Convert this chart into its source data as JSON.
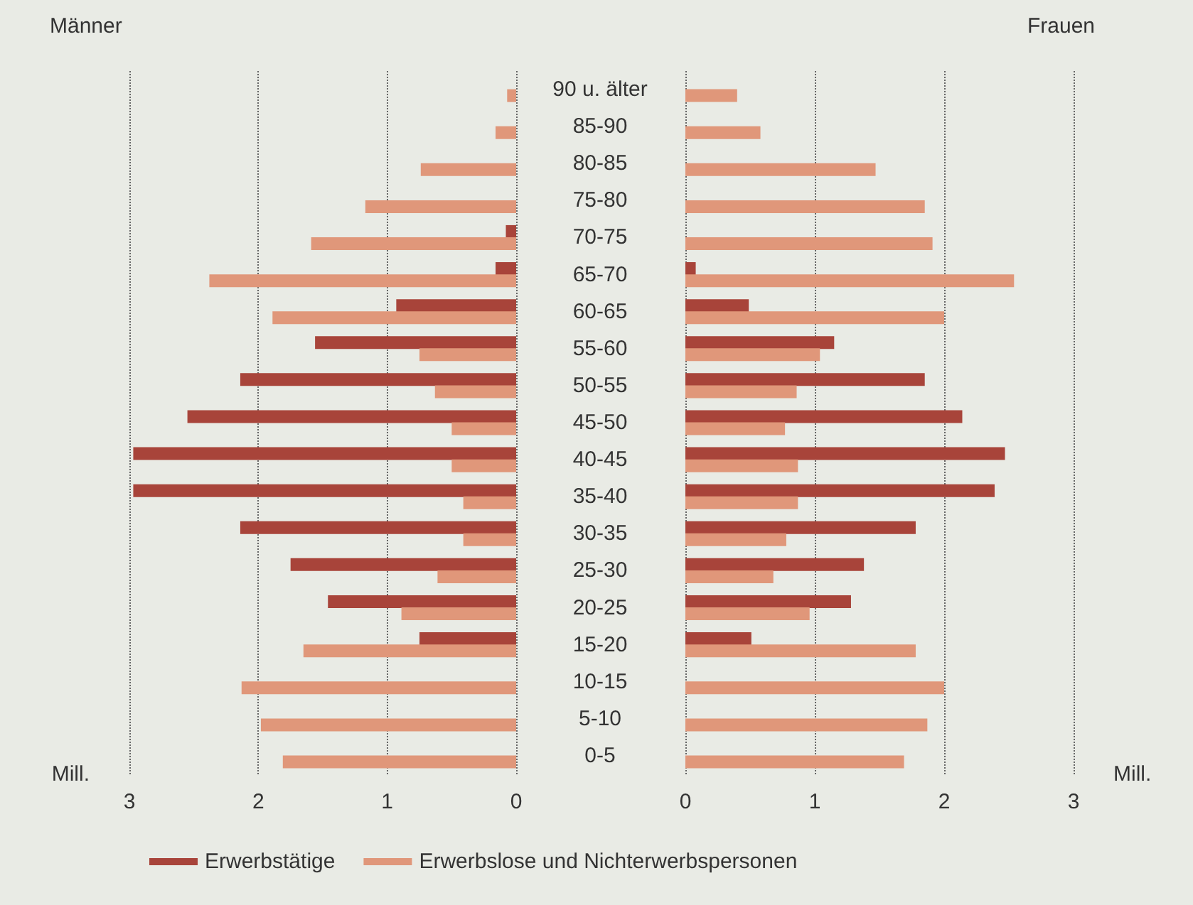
{
  "chart_data": [
    {
      "type": "bar",
      "orientation": "horizontal",
      "title": "Männer",
      "xlabel": "Mill.",
      "categories": [
        null,
        null,
        null,
        null,
        null,
        null,
        null,
        null,
        null,
        null,
        null,
        null,
        null,
        null,
        null,
        null,
        null,
        null,
        null
      ],
      "series": [
        {
          "name": "Erwerbstätige",
          "color": "#a8443a",
          "values": [
            null,
            null,
            null,
            null,
            0.08,
            0.16,
            0.93,
            1.56,
            2.14,
            2.55,
            2.97,
            2.97,
            2.14,
            1.75,
            1.46,
            0.75,
            null,
            null,
            null
          ]
        },
        {
          "name": "Erwerbslose und Nichterwerbspersonen",
          "color": "#e0977a",
          "values": [
            0.07,
            0.16,
            0.74,
            1.17,
            1.59,
            2.38,
            1.89,
            0.75,
            0.63,
            0.5,
            0.5,
            0.41,
            0.41,
            0.61,
            0.89,
            1.65,
            2.13,
            1.98,
            1.81
          ]
        }
      ],
      "xlim": [
        3,
        0
      ],
      "xticks": [
        3,
        2,
        1,
        0
      ],
      "grid": "x",
      "legend": "bottom",
      "tick_labels": "x"
    },
    {
      "type": "bar",
      "orientation": "horizontal",
      "title": "Frauen",
      "xlabel": "Mill.",
      "categories": [
        "90 u. älter",
        "85-90",
        "80-85",
        "75-80",
        "70-75",
        "65-70",
        "60-65",
        "55-60",
        "50-55",
        "45-50",
        "40-45",
        "35-40",
        "30-35",
        "25-30",
        "20-25",
        "15-20",
        "10-15",
        "5-10",
        "0-5"
      ],
      "series": [
        {
          "color": "#a8443a",
          "values": [
            null,
            null,
            null,
            null,
            null,
            0.08,
            0.49,
            1.15,
            1.85,
            2.14,
            2.47,
            2.39,
            1.78,
            1.38,
            1.28,
            0.51,
            null,
            null,
            null
          ]
        },
        {
          "color": "#e0977a",
          "values": [
            0.4,
            0.58,
            1.47,
            1.85,
            1.91,
            2.54,
            2.0,
            1.04,
            0.86,
            0.77,
            0.87,
            0.87,
            0.78,
            0.68,
            0.96,
            1.78,
            2.0,
            1.87,
            1.69
          ]
        }
      ],
      "xlim": [
        0,
        3
      ],
      "xticks": [
        0,
        1,
        2,
        3
      ],
      "grid": "x"
    }
  ]
}
